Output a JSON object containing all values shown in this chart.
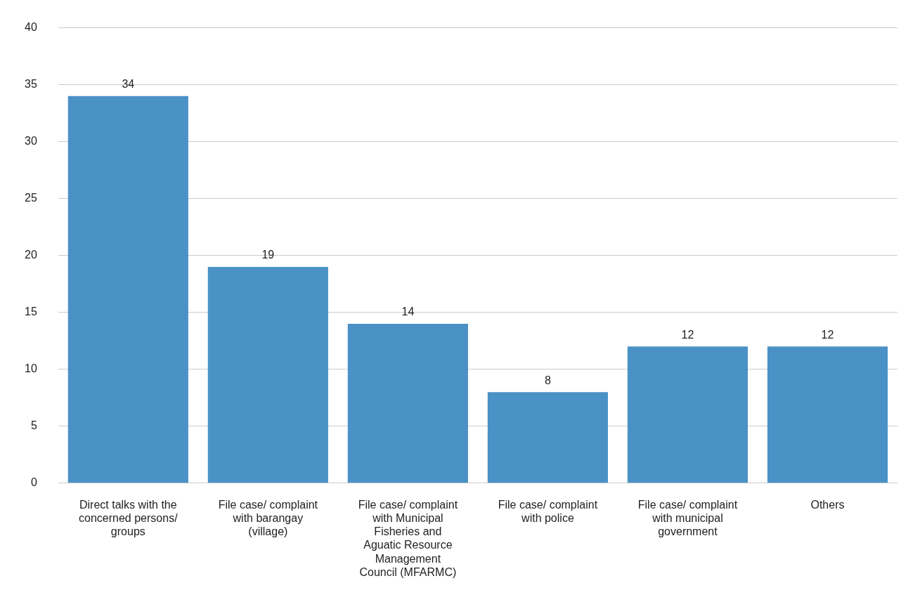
{
  "chart_data": {
    "type": "bar",
    "categories": [
      "Direct talks with the concerned persons/ groups",
      "File case/ complaint with barangay (village)",
      "File case/ complaint with Municipal Fisheries and Aguatic Resource Management Council (MFARMC)",
      "File case/ complaint with police",
      "File case/ complaint with municipal government",
      "Others"
    ],
    "values": [
      34,
      19,
      14,
      8,
      12,
      12
    ],
    "color": "#4a91c6",
    "ylim": [
      0,
      40
    ],
    "yticks": [
      0,
      5,
      10,
      15,
      20,
      25,
      30,
      35,
      40
    ],
    "grid": "y",
    "data_labels": true,
    "legend": false
  }
}
